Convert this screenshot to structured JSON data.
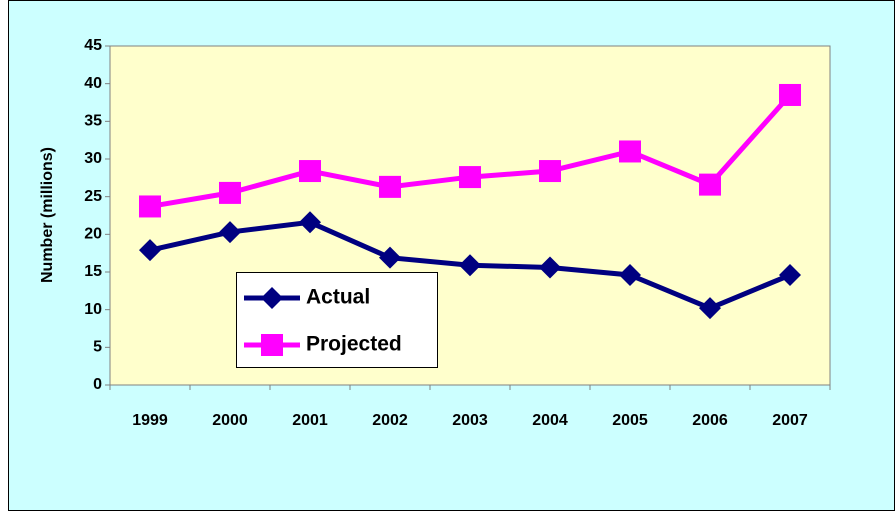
{
  "chart_data": {
    "type": "line",
    "categories": [
      "1999",
      "2000",
      "2001",
      "2002",
      "2003",
      "2004",
      "2005",
      "2006",
      "2007"
    ],
    "series": [
      {
        "name": "Actual",
        "color": "#000080",
        "marker": "diamond",
        "values": [
          17.9,
          20.3,
          21.6,
          16.9,
          15.9,
          15.6,
          14.6,
          10.2,
          14.6
        ]
      },
      {
        "name": "Projected",
        "color": "#ff00ff",
        "marker": "square",
        "values": [
          23.7,
          25.5,
          28.4,
          26.3,
          27.6,
          28.4,
          31.0,
          26.6,
          38.5
        ]
      }
    ],
    "ylabel": "Number (millions)",
    "ylim": [
      0,
      45
    ],
    "yticks": [
      0,
      5,
      10,
      15,
      20,
      25,
      30,
      35,
      40,
      45
    ]
  }
}
